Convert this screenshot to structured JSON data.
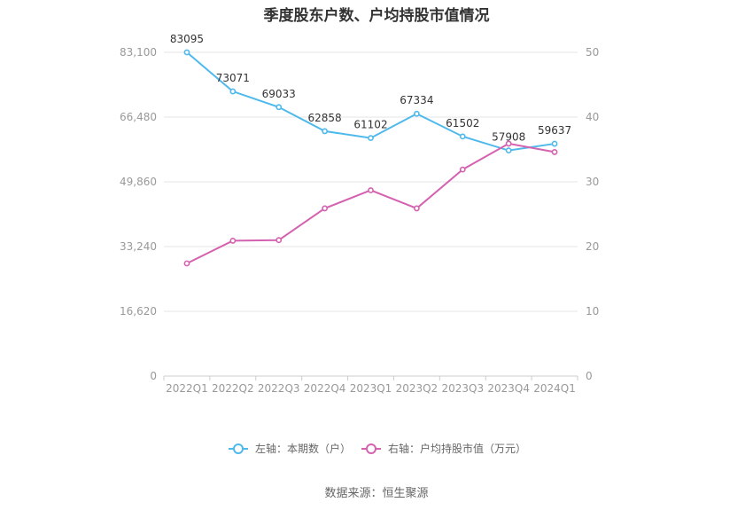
{
  "chart_data": {
    "type": "line",
    "title": "季度股东户数、户均持股市值情况",
    "categories": [
      "2022Q1",
      "2022Q2",
      "2022Q3",
      "2022Q4",
      "2023Q1",
      "2023Q2",
      "2023Q3",
      "2023Q4",
      "2024Q1"
    ],
    "left_axis": {
      "ticks": [
        "0",
        "16,620",
        "33,240",
        "49,860",
        "66,480",
        "83,100"
      ],
      "ylim": [
        0,
        83100
      ]
    },
    "right_axis": {
      "ticks": [
        "0",
        "10",
        "20",
        "30",
        "40",
        "50"
      ],
      "ylim": [
        0,
        50
      ]
    },
    "grid": true,
    "legend_position": "bottom",
    "series": [
      {
        "name": "左轴：本期数（户）",
        "axis": "left",
        "color": "#4fb9ec",
        "values": [
          83095,
          73071,
          69033,
          62858,
          61102,
          67334,
          61502,
          57908,
          59637
        ],
        "labels": [
          "83095",
          "73071",
          "69033",
          "62858",
          "61102",
          "67334",
          "61502",
          "57908",
          "59637"
        ]
      },
      {
        "name": "右轴：户均持股市值（万元）",
        "axis": "right",
        "color": "#d462b0",
        "values": [
          17.4,
          20.9,
          21.0,
          25.9,
          28.7,
          25.9,
          31.9,
          35.9,
          34.6
        ]
      }
    ]
  },
  "footer": {
    "source": "数据来源：恒生聚源"
  }
}
